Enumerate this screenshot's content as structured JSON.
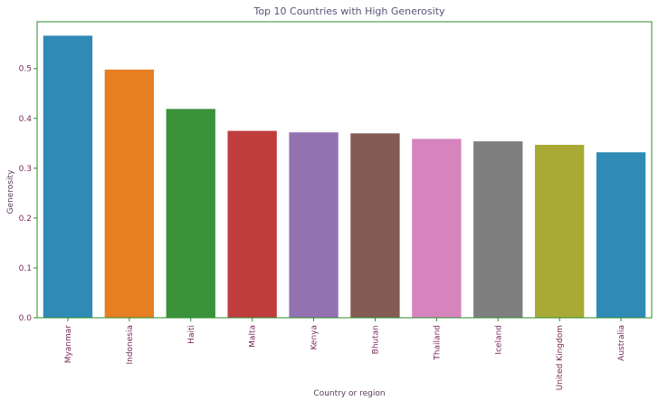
{
  "chart_data": {
    "type": "bar",
    "title": "Top 10 Countries with High Generosity",
    "xlabel": "Country or region",
    "ylabel": "Generosity",
    "categories": [
      "Myanmar",
      "Indonesia",
      "Haiti",
      "Malta",
      "Kenya",
      "Bhutan",
      "Thailand",
      "Iceland",
      "United Kingdom",
      "Australia"
    ],
    "values": [
      0.566,
      0.498,
      0.419,
      0.375,
      0.372,
      0.37,
      0.359,
      0.354,
      0.347,
      0.332
    ],
    "colors": [
      "#2f8bb6",
      "#e67e22",
      "#3a923a",
      "#c03d3e",
      "#9372b2",
      "#845b53",
      "#d684bd",
      "#7f7f7f",
      "#a9aa35",
      "#2f8bb6"
    ],
    "yticks": [
      0.0,
      0.1,
      0.2,
      0.3,
      0.4,
      0.5
    ],
    "ytick_labels": [
      "0.0",
      "0.1",
      "0.2",
      "0.3",
      "0.4",
      "0.5"
    ],
    "ylim": [
      0,
      0.594
    ],
    "grid": false,
    "legend": "none",
    "frame_color": "#2e8b2e"
  }
}
